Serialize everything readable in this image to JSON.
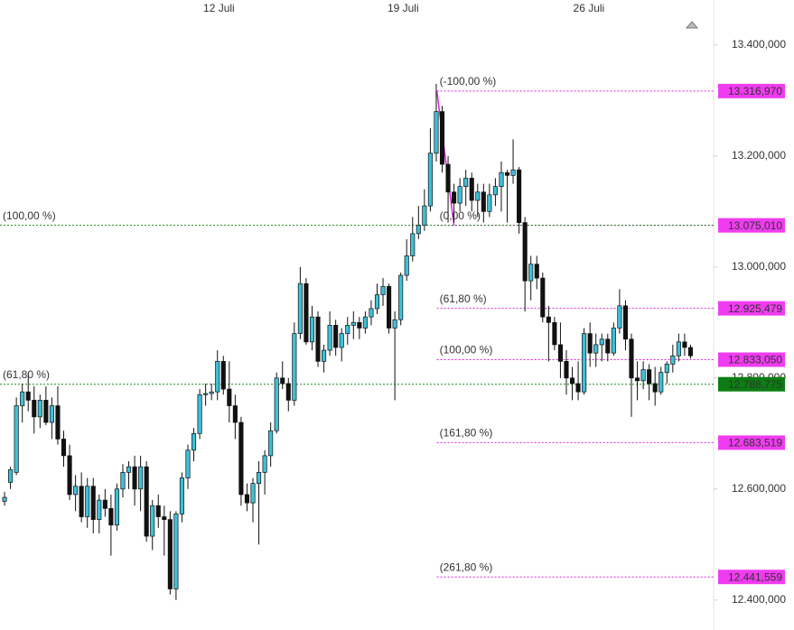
{
  "chart_data": {
    "type": "candlestick",
    "up_color": "#3ec0d8",
    "down_color": "#111111",
    "xlim": [
      -0.77,
      119.9
    ],
    "xticks": [
      {
        "value": 36.25,
        "label": "12 Juli"
      },
      {
        "value": 67.4,
        "label": "19 Juli"
      },
      {
        "value": 98.8,
        "label": "26 Juli"
      }
    ],
    "ylim": [
      12346,
      13481
    ],
    "yticks": [
      {
        "value": 13400,
        "label": "13.400,000"
      },
      {
        "value": 13200,
        "label": "13.200,000"
      },
      {
        "value": 13000,
        "label": "13.000,000"
      },
      {
        "value": 12800,
        "label": "12.800,000"
      },
      {
        "value": 12600,
        "label": "12.600,000"
      },
      {
        "value": 12400,
        "label": "12.400,000"
      }
    ],
    "open": [
      12578,
      12612,
      12630,
      12750,
      12775,
      12760,
      12730,
      12760,
      12720,
      12750,
      12690,
      12660,
      12590,
      12605,
      12550,
      12605,
      12545,
      12580,
      12565,
      12535,
      12600,
      12630,
      12640,
      12600,
      12640,
      12515,
      12570,
      12550,
      12545,
      12420,
      12555,
      12620,
      12670,
      12700,
      12770,
      12772,
      12775,
      12830,
      12780,
      12750,
      12720,
      12590,
      12575,
      12610,
      12630,
      12660,
      12705,
      12800,
      12790,
      12760,
      12880,
      12970,
      12865,
      12910,
      12830,
      12850,
      12895,
      12855,
      12880,
      12895,
      12900,
      12890,
      12910,
      12925,
      12950,
      12965,
      12890,
      12905,
      12985,
      13020,
      13060,
      13075,
      13110,
      13205,
      13280,
      13185,
      13135,
      13115,
      13145,
      13160,
      13120,
      13135,
      13100,
      13130,
      13145,
      13170,
      13165,
      13175,
      13080,
      12975,
      13005,
      12980,
      12910,
      12900,
      12860,
      12830,
      12800,
      12790,
      12775,
      12880,
      12845,
      12860,
      12870,
      12845,
      12890,
      12930,
      12870,
      12800,
      12795,
      12815,
      12790,
      12775,
      12810,
      12825,
      12840,
      12865,
      12855
    ],
    "high": [
      12595,
      12640,
      12765,
      12790,
      12810,
      12785,
      12770,
      12785,
      12765,
      12785,
      12705,
      12680,
      12625,
      12630,
      12620,
      12620,
      12590,
      12600,
      12590,
      12610,
      12645,
      12650,
      12660,
      12660,
      12650,
      12580,
      12590,
      12570,
      12560,
      12560,
      12630,
      12680,
      12710,
      12780,
      12790,
      12790,
      12850,
      12840,
      12830,
      12770,
      12730,
      12610,
      12620,
      12650,
      12670,
      12720,
      12810,
      12830,
      12800,
      12900,
      13000,
      12980,
      12930,
      12920,
      12860,
      12920,
      12905,
      12890,
      12910,
      12920,
      12910,
      12920,
      12940,
      12970,
      12980,
      12970,
      12920,
      12990,
      13050,
      13090,
      13110,
      13140,
      13250,
      13330,
      13290,
      13200,
      13150,
      13160,
      13175,
      13170,
      13150,
      13150,
      13150,
      13160,
      13190,
      13175,
      13230,
      13180,
      13090,
      13020,
      13020,
      12990,
      12930,
      12910,
      12900,
      12850,
      12820,
      12830,
      12890,
      12900,
      12880,
      12880,
      12880,
      12900,
      12960,
      12940,
      12880,
      12830,
      12830,
      12825,
      12820,
      12820,
      12830,
      12860,
      12880,
      12880,
      12860
    ],
    "low": [
      12570,
      12600,
      12625,
      12720,
      12740,
      12700,
      12710,
      12715,
      12690,
      12680,
      12640,
      12580,
      12560,
      12540,
      12530,
      12520,
      12520,
      12550,
      12480,
      12525,
      12585,
      12600,
      12570,
      12560,
      12505,
      12490,
      12530,
      12480,
      12410,
      12400,
      12540,
      12600,
      12650,
      12690,
      12750,
      12760,
      12760,
      12770,
      12720,
      12690,
      12570,
      12560,
      12540,
      12500,
      12590,
      12640,
      12700,
      12780,
      12740,
      12750,
      12870,
      12860,
      12850,
      12820,
      12810,
      12840,
      12840,
      12830,
      12860,
      12870,
      12870,
      12880,
      12895,
      12915,
      12930,
      12880,
      12760,
      12895,
      12975,
      13010,
      13050,
      13065,
      13100,
      13190,
      13170,
      13080,
      13080,
      13100,
      13110,
      13100,
      13090,
      13080,
      13090,
      13110,
      13100,
      13080,
      13150,
      13060,
      12920,
      12940,
      12960,
      12900,
      12830,
      12850,
      12800,
      12770,
      12760,
      12760,
      12770,
      12820,
      12820,
      12830,
      12830,
      12840,
      12880,
      12850,
      12730,
      12760,
      12780,
      12760,
      12750,
      12770,
      12790,
      12810,
      12830,
      12840,
      12835
    ],
    "close": [
      12585,
      12635,
      12750,
      12775,
      12760,
      12730,
      12760,
      12720,
      12750,
      12690,
      12660,
      12590,
      12605,
      12550,
      12605,
      12545,
      12580,
      12565,
      12535,
      12600,
      12630,
      12640,
      12600,
      12640,
      12515,
      12570,
      12550,
      12545,
      12420,
      12555,
      12620,
      12670,
      12700,
      12770,
      12772,
      12775,
      12830,
      12780,
      12750,
      12720,
      12590,
      12575,
      12610,
      12630,
      12660,
      12705,
      12800,
      12790,
      12760,
      12880,
      12970,
      12865,
      12910,
      12830,
      12850,
      12895,
      12855,
      12880,
      12895,
      12900,
      12890,
      12910,
      12925,
      12950,
      12965,
      12890,
      12905,
      12985,
      13020,
      13060,
      13075,
      13110,
      13205,
      13280,
      13185,
      13135,
      13115,
      13145,
      13160,
      13120,
      13135,
      13100,
      13130,
      13145,
      13170,
      13165,
      13175,
      13080,
      12975,
      13005,
      12980,
      12910,
      12900,
      12860,
      12830,
      12800,
      12790,
      12775,
      12880,
      12845,
      12860,
      12870,
      12845,
      12890,
      12930,
      12870,
      12800,
      12795,
      12815,
      12790,
      12775,
      12810,
      12825,
      12840,
      12865,
      12855,
      12840
    ],
    "fibonacci": [
      {
        "color": "#e020e0",
        "x": [
          73.1,
          76.0
        ],
        "y": [
          13316.97,
          13075.01
        ],
        "levels": [
          {
            "label": "(-100,00 %)",
            "value": 13316.97,
            "value_label": "13.316,970"
          },
          {
            "label": "(0,00 %)",
            "value": 13075.01,
            "value_label": "13.075,010"
          },
          {
            "label": "(61,80 %)",
            "value": 12925.479,
            "value_label": "12.925,479"
          },
          {
            "label": "(100,00 %)",
            "value": 12833.05,
            "value_label": "12.833,050"
          },
          {
            "label": "(161,80 %)",
            "value": 12683.519,
            "value_label": "12.683,519"
          },
          {
            "label": "(261,80 %)",
            "value": 12441.559,
            "value_label": "12.441,559"
          }
        ]
      },
      {
        "color": "#1a8a1a",
        "x": [
          -0.77
        ],
        "y": [],
        "levels": [
          {
            "label": "(100,00 %)",
            "value": 13075.01
          },
          {
            "label": "(61,80 %)",
            "value": 12788.775,
            "value_label": "12.788,775"
          }
        ]
      }
    ]
  }
}
